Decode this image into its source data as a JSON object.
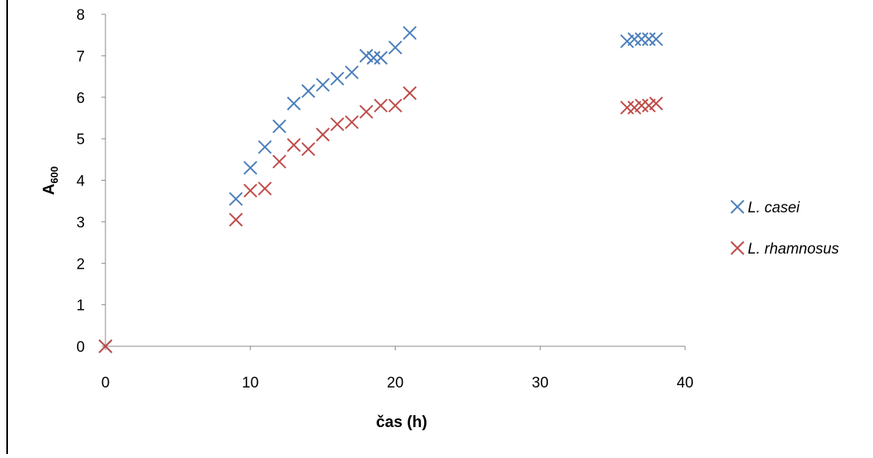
{
  "chart_data": {
    "type": "scatter",
    "title": "",
    "xlabel": "čas (h)",
    "ylabel_main": "A",
    "ylabel_sub": "600",
    "xlim": [
      0,
      40
    ],
    "ylim": [
      0,
      8
    ],
    "x_ticks": [
      0,
      10,
      20,
      30,
      40
    ],
    "y_ticks": [
      0,
      1,
      2,
      3,
      4,
      5,
      6,
      7,
      8
    ],
    "grid": false,
    "legend_position": "right",
    "marker": "x",
    "series": [
      {
        "name": "L. casei",
        "color": "#4a7ebb",
        "points": [
          [
            0,
            0
          ],
          [
            9,
            3.55
          ],
          [
            10,
            4.3
          ],
          [
            11,
            4.8
          ],
          [
            12,
            5.3
          ],
          [
            13,
            5.85
          ],
          [
            14,
            6.15
          ],
          [
            15,
            6.3
          ],
          [
            16,
            6.45
          ],
          [
            17,
            6.6
          ],
          [
            18,
            7.0
          ],
          [
            18.5,
            6.95
          ],
          [
            19,
            6.95
          ],
          [
            20,
            7.2
          ],
          [
            21,
            7.55
          ],
          [
            36,
            7.35
          ],
          [
            36.5,
            7.4
          ],
          [
            37,
            7.4
          ],
          [
            37.5,
            7.4
          ],
          [
            38,
            7.4
          ]
        ]
      },
      {
        "name": "L. rhamnosus",
        "color": "#be4b48",
        "points": [
          [
            0,
            0
          ],
          [
            9,
            3.05
          ],
          [
            10,
            3.75
          ],
          [
            11,
            3.8
          ],
          [
            12,
            4.45
          ],
          [
            13,
            4.85
          ],
          [
            14,
            4.75
          ],
          [
            15,
            5.1
          ],
          [
            16,
            5.35
          ],
          [
            17,
            5.4
          ],
          [
            18,
            5.65
          ],
          [
            19,
            5.8
          ],
          [
            20,
            5.8
          ],
          [
            21,
            6.1
          ],
          [
            36,
            5.75
          ],
          [
            36.5,
            5.75
          ],
          [
            37,
            5.8
          ],
          [
            37.5,
            5.8
          ],
          [
            38,
            5.85
          ]
        ]
      }
    ]
  }
}
